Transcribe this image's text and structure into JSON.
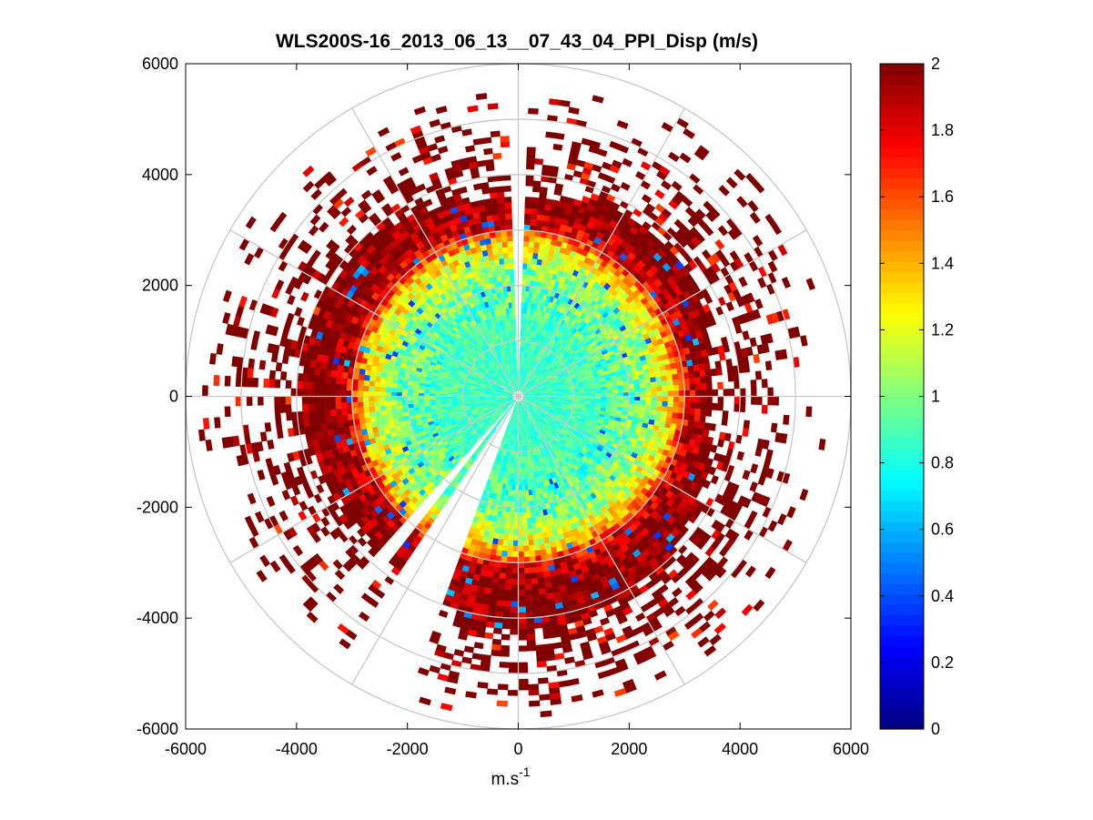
{
  "chart_data": {
    "type": "heatmap",
    "subtype": "polar-ppi",
    "title": "WLS200S-16_2013_06_13__07_43_04_PPI_Disp (m/s)",
    "xlabel": "m.s",
    "xlabel_superscript": "-1",
    "ylabel": "",
    "xlim": [
      -6000,
      6000
    ],
    "ylim": [
      -6000,
      6000
    ],
    "xticks": [
      -6000,
      -4000,
      -2000,
      0,
      2000,
      4000,
      6000
    ],
    "yticks": [
      -6000,
      -4000,
      -2000,
      0,
      2000,
      4000,
      6000
    ],
    "xtick_labels": [
      "-6000",
      "-4000",
      "-2000",
      "0",
      "2000",
      "4000",
      "6000"
    ],
    "ytick_labels": [
      "6000",
      "4000",
      "2000",
      "0",
      "-2000",
      "-4000",
      "-6000"
    ],
    "polar_grid": {
      "ring_radii": [
        1000,
        2000,
        3000,
        4000,
        5000,
        6000
      ],
      "spoke_angles_deg": [
        0,
        30,
        60,
        90,
        120,
        150,
        180,
        210,
        240,
        270,
        300,
        330
      ],
      "grid_color": "#c8c8c8"
    },
    "colorbar": {
      "colormap": "jet",
      "clim": [
        0,
        2
      ],
      "ticks": [
        0,
        0.2,
        0.4,
        0.6,
        0.8,
        1,
        1.2,
        1.4,
        1.6,
        1.8,
        2
      ],
      "tick_labels": [
        "0",
        "0.2",
        "0.4",
        "0.6",
        "0.8",
        "1",
        "1.2",
        "1.4",
        "1.6",
        "1.8",
        "2"
      ],
      "location": "right"
    },
    "field": {
      "range_max": 5800,
      "range_gate": 100,
      "azimuth_step_deg": 2,
      "radial_profile": [
        {
          "range": 0,
          "value": 0.85
        },
        {
          "range": 1500,
          "value": 0.9
        },
        {
          "range": 2200,
          "value": 1.0
        },
        {
          "range": 2700,
          "value": 1.3
        },
        {
          "range": 3000,
          "value": 1.8
        },
        {
          "range": 3400,
          "value": 2.0
        }
      ],
      "data_cutoff": [
        {
          "azimuth_deg": 0,
          "range": 3500
        },
        {
          "azimuth_deg": 45,
          "range": 3800
        },
        {
          "azimuth_deg": 90,
          "range": 3300
        },
        {
          "azimuth_deg": 135,
          "range": 3900
        },
        {
          "azimuth_deg": 180,
          "range": 4200
        },
        {
          "azimuth_deg": 225,
          "range": 3600
        },
        {
          "azimuth_deg": 270,
          "range": 3900
        },
        {
          "azimuth_deg": 315,
          "range": 3800
        },
        {
          "azimuth_deg": 360,
          "range": 3500
        }
      ],
      "blocked_sectors_deg": [
        [
          -1.5,
          1.5
        ],
        [
          200,
          214
        ],
        [
          219,
          222
        ]
      ]
    }
  }
}
